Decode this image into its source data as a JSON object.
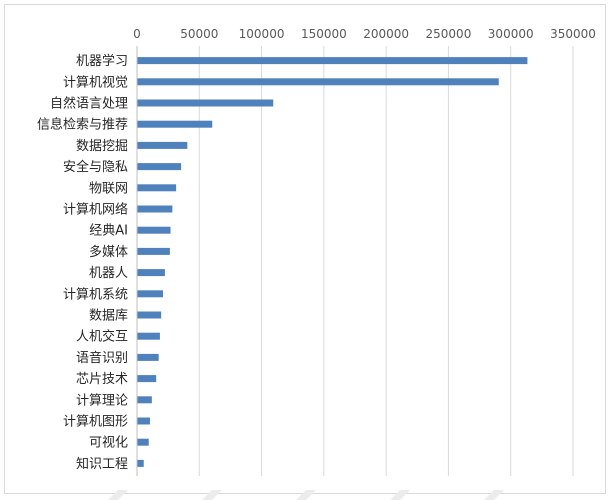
{
  "chart_data": {
    "type": "bar",
    "orientation": "horizontal",
    "categories": [
      "机器学习",
      "计算机视觉",
      "自然语言处理",
      "信息检索与推荐",
      "数据挖掘",
      "安全与隐私",
      "物联网",
      "计算机网络",
      "经典AI",
      "多媒体",
      "机器人",
      "计算机系统",
      "数据库",
      "人机交互",
      "语音识别",
      "芯片技术",
      "计算理论",
      "计算机图形",
      "可视化",
      "知识工程"
    ],
    "values": [
      313000,
      290000,
      109000,
      60000,
      40000,
      35000,
      31000,
      28000,
      26500,
      26000,
      22000,
      20500,
      19000,
      18000,
      17000,
      15000,
      11500,
      10000,
      9000,
      5000
    ],
    "xlim": [
      0,
      350000
    ],
    "xticks": [
      "0",
      "50000",
      "100000",
      "150000",
      "200000",
      "250000",
      "300000",
      "350000"
    ],
    "axis_position": "top",
    "grid": true,
    "bar_color": "#4f81bd"
  }
}
